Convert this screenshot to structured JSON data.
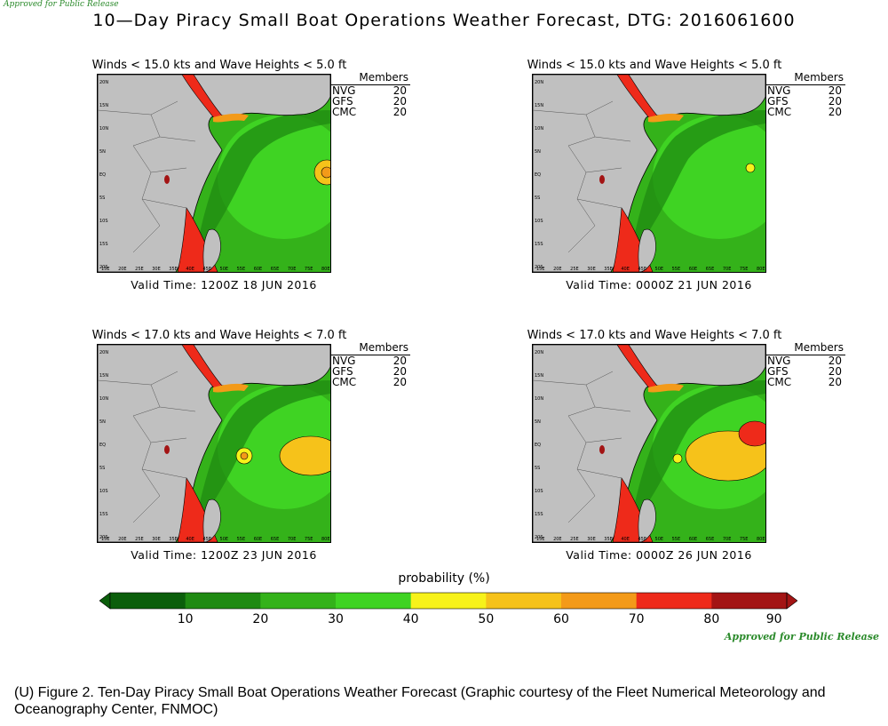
{
  "header": {
    "stamp": "Approved for Public Release",
    "title": "10—Day Piracy Small Boat Operations Weather Forecast, DTG: 2016061600"
  },
  "panels": [
    {
      "subtitle": "Winds < 15.0 kts and Wave Heights < 5.0 ft",
      "valid_time": "Valid Time: 1200Z 18 JUN 2016"
    },
    {
      "subtitle": "Winds < 15.0 kts and Wave Heights < 5.0 ft",
      "valid_time": "Valid Time: 0000Z 21 JUN 2016"
    },
    {
      "subtitle": "Winds < 17.0 kts and Wave Heights < 7.0 ft",
      "valid_time": "Valid Time: 1200Z 23 JUN 2016"
    },
    {
      "subtitle": "Winds < 17.0 kts and Wave Heights < 7.0 ft",
      "valid_time": "Valid Time: 0000Z 26 JUN 2016"
    }
  ],
  "members": {
    "header": "Members",
    "rows": [
      {
        "name": "NVG",
        "count": "20"
      },
      {
        "name": "GFS",
        "count": "20"
      },
      {
        "name": "CMC",
        "count": "20"
      }
    ]
  },
  "map_axes": {
    "lat_labels": [
      "20N",
      "15N",
      "10N",
      "5N",
      "EQ",
      "5S",
      "10S",
      "15S",
      "20S"
    ],
    "lon_labels": [
      "15E",
      "20E",
      "25E",
      "30E",
      "35E",
      "40E",
      "45E",
      "50E",
      "55E",
      "60E",
      "65E",
      "70E",
      "75E",
      "80E"
    ]
  },
  "colorbar": {
    "label": "probability (%)",
    "ticks": [
      "10",
      "20",
      "30",
      "40",
      "50",
      "60",
      "70",
      "80",
      "90"
    ],
    "colors": [
      "#0b5e0b",
      "#1f8a12",
      "#34b21a",
      "#3fd323",
      "#f7f21a",
      "#f6c21a",
      "#f39a19",
      "#ee2a1a",
      "#a31414"
    ]
  },
  "footer": {
    "approved": "Approved for Public Release",
    "caption": "(U) Figure 2. Ten-Day Piracy Small Boat Operations Weather Forecast (Graphic courtesy of the Fleet Numerical Meteorology and Oceanography Center, FNMOC)"
  }
}
